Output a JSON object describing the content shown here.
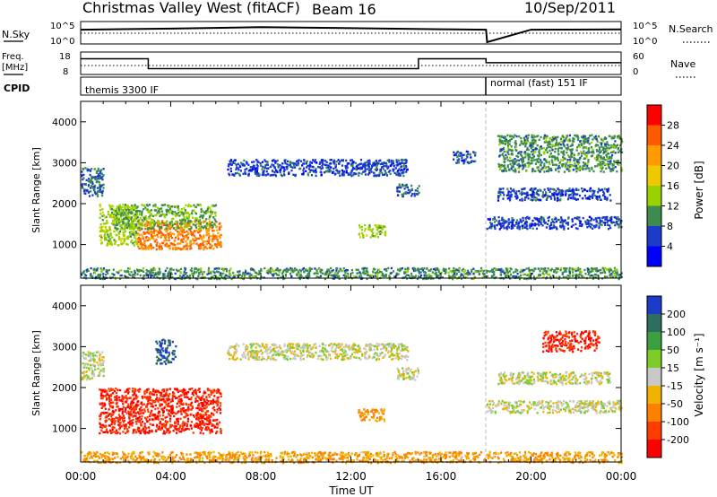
{
  "header": {
    "station": "Christmas Valley West (fitACF)",
    "beam": "Beam 16",
    "date": "10/Sep/2011"
  },
  "noise_panel": {
    "left_label": "N.Sky",
    "right_label": "N.Search",
    "ticks_left": [
      "10^5",
      "10^0"
    ],
    "ticks_right": [
      "10^5",
      "10^0"
    ]
  },
  "freq_panel": {
    "left_label_1": "Freq.",
    "left_label_2": "[MHz]",
    "right_label": "Nave",
    "ticks_left": [
      "18",
      "8"
    ],
    "ticks_right": [
      "60",
      "0"
    ]
  },
  "cpid_panel": {
    "label": "CPID",
    "mode_1": "themis 3300 IF",
    "mode_2": "normal (fast) 151 IF"
  },
  "x_axis": {
    "ticks": [
      "00:00",
      "04:00",
      "08:00",
      "12:00",
      "16:00",
      "20:00",
      "00:00"
    ],
    "label": "Time UT"
  },
  "y_axis": {
    "label": "Slant Range [km]",
    "ticks": [
      "4000",
      "3000",
      "2000",
      "1000"
    ]
  },
  "colorbars": {
    "power": {
      "label": "Power [dB]",
      "ticks": [
        "28",
        "24",
        "20",
        "16",
        "12",
        "8",
        "4"
      ],
      "colors": [
        "#ff0000",
        "#ff5a00",
        "#ff9a00",
        "#f0c800",
        "#9ad200",
        "#3c8c50",
        "#1a3cc8",
        "#0000ff"
      ]
    },
    "velocity": {
      "label": "Velocity [m s⁻¹]",
      "ticks": [
        "200",
        "100",
        "50",
        "15",
        "-15",
        "-50",
        "-100",
        "-200"
      ],
      "colors": [
        "#1a3cc8",
        "#2e6e60",
        "#3ca040",
        "#7ccc2a",
        "#c8c8c8",
        "#f0b400",
        "#ff8000",
        "#ff3c00",
        "#ff0000"
      ]
    }
  },
  "chart_data": [
    {
      "type": "line",
      "title": "Christmas Valley West (fitACF) Beam 16 10/Sep/2011",
      "xlabel": "",
      "ylabel": "N.Sky",
      "x_unit": "hours UT",
      "xlim": [
        0,
        24
      ],
      "series": [
        {
          "x": [
            0,
            4,
            8,
            12,
            16,
            18,
            18.05,
            20,
            24
          ],
          "values": [
            3000,
            6000,
            15000,
            8000,
            4000,
            3000,
            1,
            3000,
            3500
          ]
        }
      ]
    },
    {
      "type": "line",
      "ylabel": "Freq. [MHz]",
      "ylim": [
        8,
        18
      ],
      "series": [
        {
          "x": [
            0,
            3.0,
            3.0,
            15.0,
            15.0,
            18.0,
            18.0,
            24
          ],
          "values": [
            15.5,
            15.5,
            10.5,
            10.5,
            15.5,
            15.5,
            13.5,
            13.5
          ]
        }
      ]
    },
    {
      "type": "table",
      "ylabel": "CPID",
      "modes": [
        {
          "start": 0,
          "end": 18,
          "name": "themis 3300 IF"
        },
        {
          "start": 18,
          "end": 24,
          "name": "normal (fast) 151 IF"
        }
      ]
    },
    {
      "type": "heatmap",
      "parameter": "Power [dB]",
      "xlabel": "Time UT",
      "ylabel": "Slant Range [km]",
      "xlim": [
        0,
        24
      ],
      "ylim": [
        180,
        4500
      ],
      "clim": [
        0,
        32
      ],
      "regions": [
        {
          "t0": 0.0,
          "t1": 1.0,
          "r0": 2200,
          "r1": 2900,
          "value": 8
        },
        {
          "t0": 0.8,
          "t1": 2.5,
          "r0": 1000,
          "r1": 2000,
          "value": 14
        },
        {
          "t0": 2.5,
          "t1": 6.2,
          "r0": 900,
          "r1": 1600,
          "value": 24
        },
        {
          "t0": 1.5,
          "t1": 6.0,
          "r0": 1400,
          "r1": 2000,
          "value": 12
        },
        {
          "t0": 6.5,
          "t1": 14.5,
          "r0": 2700,
          "r1": 3100,
          "value": 6
        },
        {
          "t0": 12.3,
          "t1": 13.5,
          "r0": 1200,
          "r1": 1500,
          "value": 14
        },
        {
          "t0": 14.0,
          "t1": 15.0,
          "r0": 2200,
          "r1": 2500,
          "value": 8
        },
        {
          "t0": 16.5,
          "t1": 17.5,
          "r0": 3000,
          "r1": 3300,
          "value": 6
        },
        {
          "t0": 18.0,
          "t1": 24.0,
          "r0": 1400,
          "r1": 1700,
          "value": 6
        },
        {
          "t0": 18.5,
          "t1": 23.5,
          "r0": 2100,
          "r1": 2400,
          "value": 6
        },
        {
          "t0": 18.5,
          "t1": 24.0,
          "r0": 2800,
          "r1": 3700,
          "value": 10
        },
        {
          "t0": 0.0,
          "t1": 24.0,
          "r0": 180,
          "r1": 450,
          "value": 10
        }
      ]
    },
    {
      "type": "heatmap",
      "parameter": "Velocity [m s⁻¹]",
      "xlabel": "Time UT",
      "ylabel": "Slant Range [km]",
      "xlim": [
        0,
        24
      ],
      "ylim": [
        180,
        4500
      ],
      "clim": [
        -200,
        200
      ],
      "regions": [
        {
          "t0": 0.0,
          "t1": 1.0,
          "r0": 2200,
          "r1": 2900,
          "value": 0
        },
        {
          "t0": 0.8,
          "t1": 6.2,
          "r0": 900,
          "r1": 2000,
          "value": -200
        },
        {
          "t0": 3.3,
          "t1": 4.2,
          "r0": 2600,
          "r1": 3200,
          "value": 200
        },
        {
          "t0": 6.5,
          "t1": 14.5,
          "r0": 2700,
          "r1": 3100,
          "value": 0
        },
        {
          "t0": 12.3,
          "t1": 13.5,
          "r0": 1200,
          "r1": 1500,
          "value": -60
        },
        {
          "t0": 14.0,
          "t1": 15.0,
          "r0": 2200,
          "r1": 2500,
          "value": 0
        },
        {
          "t0": 18.0,
          "t1": 24.0,
          "r0": 1400,
          "r1": 1700,
          "value": 0
        },
        {
          "t0": 18.5,
          "t1": 23.5,
          "r0": 2100,
          "r1": 2400,
          "value": 0
        },
        {
          "t0": 20.5,
          "t1": 23.0,
          "r0": 2900,
          "r1": 3400,
          "value": -200
        },
        {
          "t0": 0.0,
          "t1": 24.0,
          "r0": 180,
          "r1": 450,
          "value": -50
        }
      ]
    }
  ]
}
